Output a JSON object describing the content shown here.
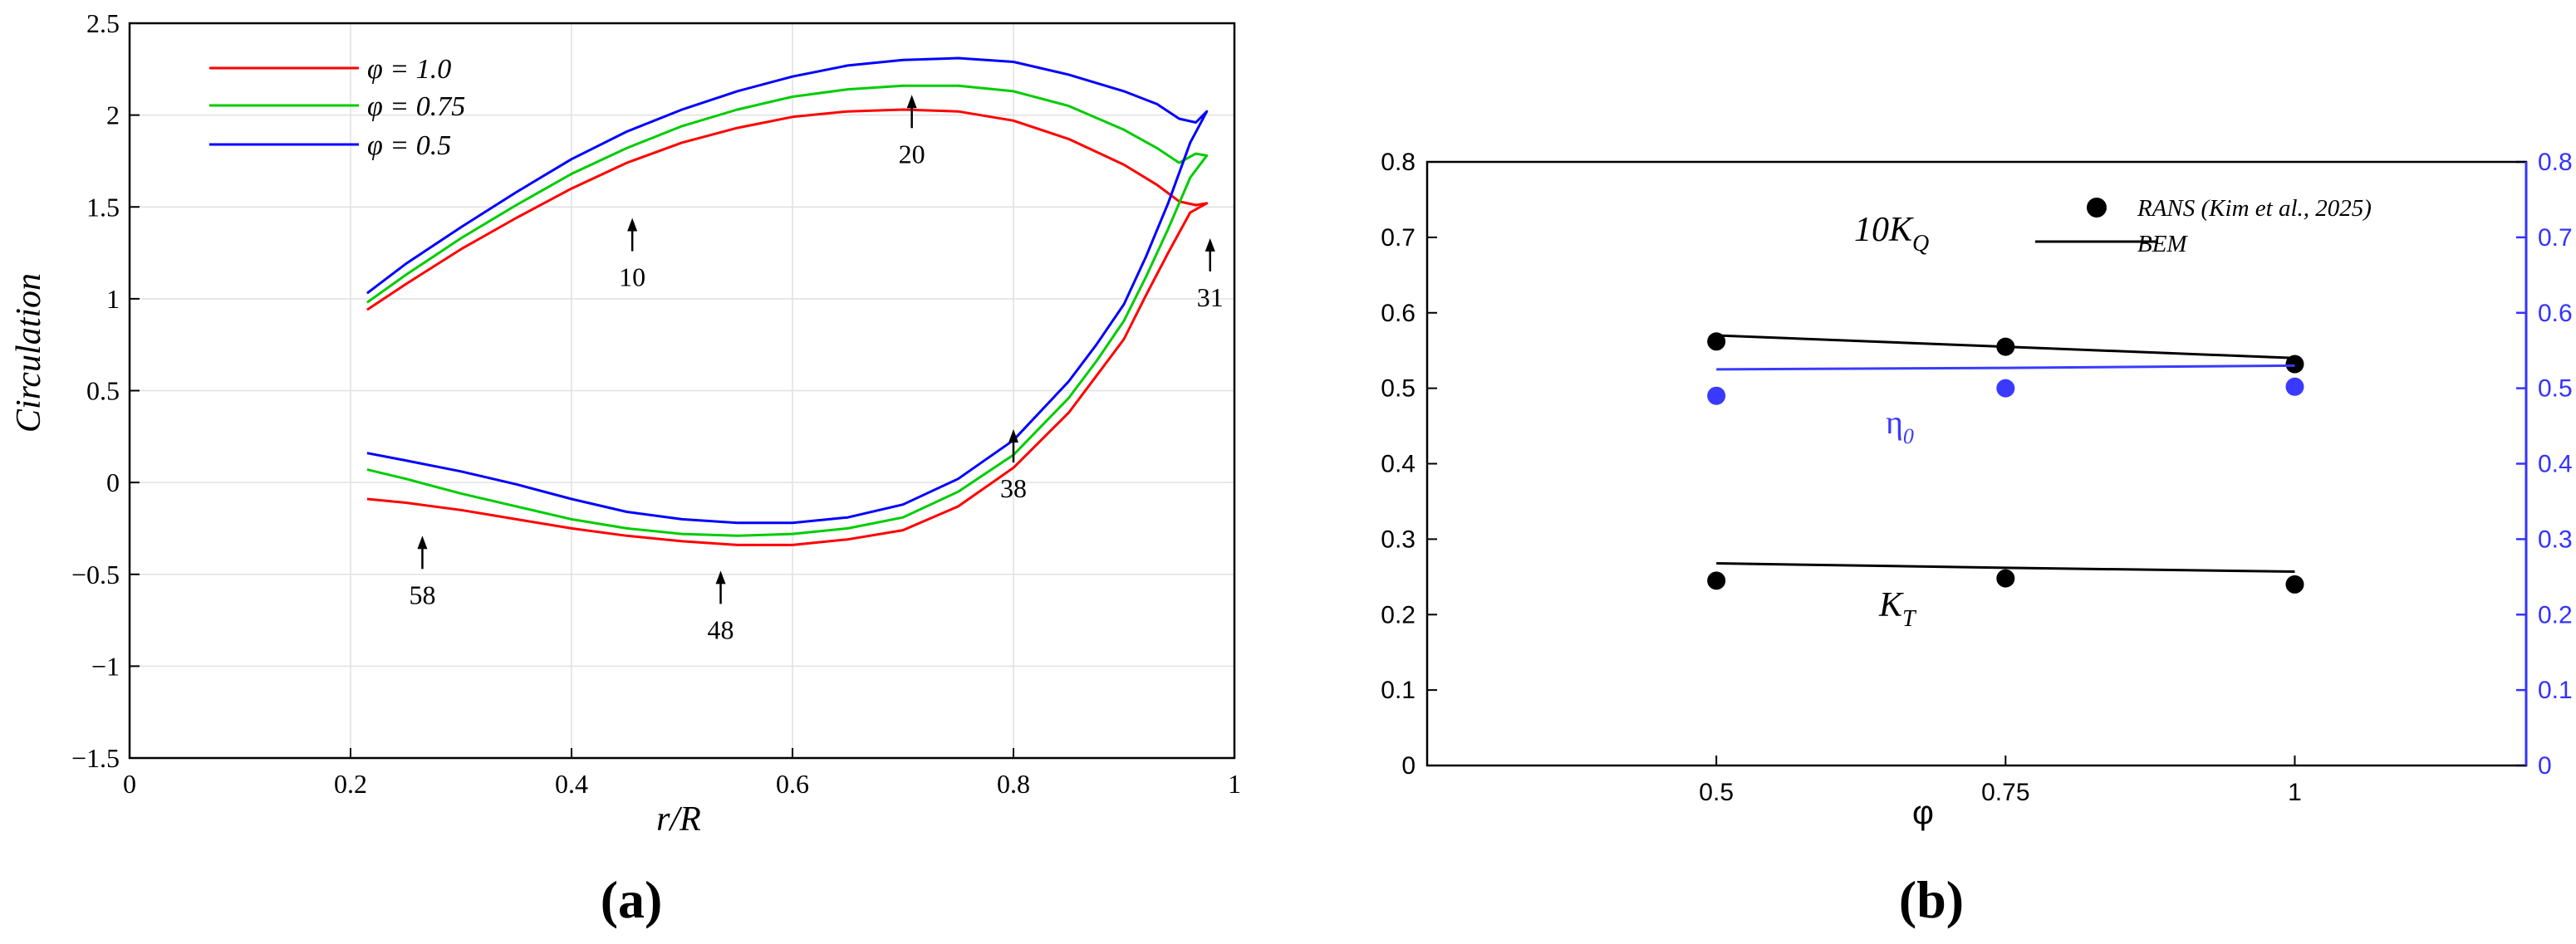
{
  "panel_a": {
    "caption": "(a)",
    "arrow_labels": [
      "10",
      "20",
      "31",
      "38",
      "48",
      "58"
    ]
  },
  "panel_b": {
    "caption": "(b)",
    "annotations": {
      "kq": "10K",
      "kq_sub": "Q",
      "eta": "η",
      "eta_sub": "0",
      "kt": "K",
      "kt_sub": "T"
    }
  },
  "colors": {
    "red": "#ff0000",
    "green": "#00cc00",
    "blue": "#0000ff",
    "black": "#000000",
    "right_axis": "#3333ff",
    "eta_series": "#3a3aff",
    "grid": "#e0e0e0"
  },
  "chart_data": [
    {
      "type": "line",
      "xlabel": "r/R",
      "ylabel": "Circulation",
      "xlim": [
        0,
        1
      ],
      "ylim": [
        -1.5,
        2.5
      ],
      "xticks": [
        0,
        0.2,
        0.4,
        0.6,
        0.8,
        1
      ],
      "xtick_labels": [
        "0",
        "0.2",
        "0.4",
        "0.6",
        "0.8",
        "1"
      ],
      "yticks": [
        -1.5,
        -1,
        -0.5,
        0,
        0.5,
        1,
        1.5,
        2,
        2.5
      ],
      "ytick_labels": [
        "−1.5",
        "−1",
        "−0.5",
        "0",
        "0.5",
        "1",
        "1.5",
        "2",
        "2.5"
      ],
      "grid": true,
      "legend_position": "top-left",
      "series": [
        {
          "name": "φ = 1.0",
          "color": "red",
          "x": [
            0.215,
            0.25,
            0.3,
            0.35,
            0.4,
            0.45,
            0.5,
            0.55,
            0.6,
            0.65,
            0.7,
            0.75,
            0.8,
            0.85,
            0.9,
            0.93,
            0.95,
            0.965,
            0.975,
            0.96,
            0.94,
            0.92,
            0.9,
            0.875,
            0.85,
            0.8,
            0.75,
            0.7,
            0.65,
            0.6,
            0.55,
            0.5,
            0.45,
            0.4,
            0.35,
            0.3,
            0.25,
            0.215
          ],
          "y": [
            0.94,
            1.08,
            1.27,
            1.44,
            1.6,
            1.74,
            1.85,
            1.93,
            1.99,
            2.02,
            2.03,
            2.02,
            1.97,
            1.87,
            1.73,
            1.62,
            1.53,
            1.51,
            1.52,
            1.47,
            1.25,
            1.02,
            0.78,
            0.58,
            0.38,
            0.08,
            -0.13,
            -0.26,
            -0.31,
            -0.34,
            -0.34,
            -0.32,
            -0.29,
            -0.25,
            -0.2,
            -0.15,
            -0.11,
            -0.09
          ]
        },
        {
          "name": "φ = 0.75",
          "color": "green",
          "x": [
            0.215,
            0.25,
            0.3,
            0.35,
            0.4,
            0.45,
            0.5,
            0.55,
            0.6,
            0.65,
            0.7,
            0.75,
            0.8,
            0.85,
            0.9,
            0.93,
            0.95,
            0.965,
            0.975,
            0.96,
            0.94,
            0.92,
            0.9,
            0.875,
            0.85,
            0.8,
            0.75,
            0.7,
            0.65,
            0.6,
            0.55,
            0.5,
            0.45,
            0.4,
            0.35,
            0.3,
            0.25,
            0.215
          ],
          "y": [
            0.98,
            1.13,
            1.33,
            1.51,
            1.68,
            1.82,
            1.94,
            2.03,
            2.1,
            2.14,
            2.16,
            2.16,
            2.13,
            2.05,
            1.92,
            1.82,
            1.74,
            1.79,
            1.78,
            1.66,
            1.38,
            1.12,
            0.88,
            0.66,
            0.46,
            0.15,
            -0.05,
            -0.19,
            -0.25,
            -0.28,
            -0.29,
            -0.28,
            -0.25,
            -0.2,
            -0.13,
            -0.06,
            0.02,
            0.07
          ]
        },
        {
          "name": "φ = 0.5",
          "color": "blue",
          "x": [
            0.215,
            0.25,
            0.3,
            0.35,
            0.4,
            0.45,
            0.5,
            0.55,
            0.6,
            0.65,
            0.7,
            0.75,
            0.8,
            0.85,
            0.9,
            0.93,
            0.95,
            0.965,
            0.975,
            0.96,
            0.94,
            0.92,
            0.9,
            0.875,
            0.85,
            0.8,
            0.75,
            0.7,
            0.65,
            0.6,
            0.55,
            0.5,
            0.45,
            0.4,
            0.35,
            0.3,
            0.25,
            0.215
          ],
          "y": [
            1.03,
            1.19,
            1.39,
            1.58,
            1.76,
            1.91,
            2.03,
            2.13,
            2.21,
            2.27,
            2.3,
            2.31,
            2.29,
            2.22,
            2.13,
            2.06,
            1.98,
            1.96,
            2.02,
            1.85,
            1.52,
            1.23,
            0.97,
            0.75,
            0.55,
            0.23,
            0.02,
            -0.12,
            -0.19,
            -0.22,
            -0.22,
            -0.2,
            -0.16,
            -0.09,
            -0.01,
            0.06,
            0.12,
            0.16
          ]
        }
      ]
    },
    {
      "type": "scatter",
      "xlabel": "φ",
      "xlim": [
        0.25,
        1.2
      ],
      "ylim": [
        0,
        0.8
      ],
      "xticks": [
        0.5,
        0.75,
        1
      ],
      "xtick_labels": [
        "0.5",
        "0.75",
        "1"
      ],
      "yticks": [
        0,
        0.1,
        0.2,
        0.3,
        0.4,
        0.5,
        0.6,
        0.7,
        0.8
      ],
      "ytick_labels": [
        "0",
        "0.1",
        "0.2",
        "0.3",
        "0.4",
        "0.5",
        "0.6",
        "0.7",
        "0.8"
      ],
      "y2ticks": [
        0,
        0.1,
        0.2,
        0.3,
        0.4,
        0.5,
        0.6,
        0.7,
        0.8
      ],
      "y2tick_labels": [
        "0",
        "0.1",
        "0.2",
        "0.3",
        "0.4",
        "0.5",
        "0.6",
        "0.7",
        "0.8"
      ],
      "grid": false,
      "legend_position": "top-right",
      "legend": [
        {
          "name": "RANS (Kim et al., 2025)",
          "style": "marker"
        },
        {
          "name": "BEM",
          "style": "line"
        }
      ],
      "series": [
        {
          "name": "10K_Q",
          "x": [
            0.5,
            0.75,
            1
          ],
          "rans": [
            0.562,
            0.555,
            0.532
          ],
          "bem": [
            0.57,
            0.555,
            0.54
          ],
          "color": "black"
        },
        {
          "name": "η_0",
          "x": [
            0.5,
            0.75,
            1
          ],
          "rans": [
            0.49,
            0.5,
            0.502
          ],
          "bem": [
            0.525,
            0.527,
            0.53
          ],
          "color": "eta_series"
        },
        {
          "name": "K_T",
          "x": [
            0.5,
            0.75,
            1
          ],
          "rans": [
            0.245,
            0.248,
            0.24
          ],
          "bem": [
            0.268,
            0.262,
            0.257
          ],
          "color": "black"
        }
      ]
    }
  ]
}
